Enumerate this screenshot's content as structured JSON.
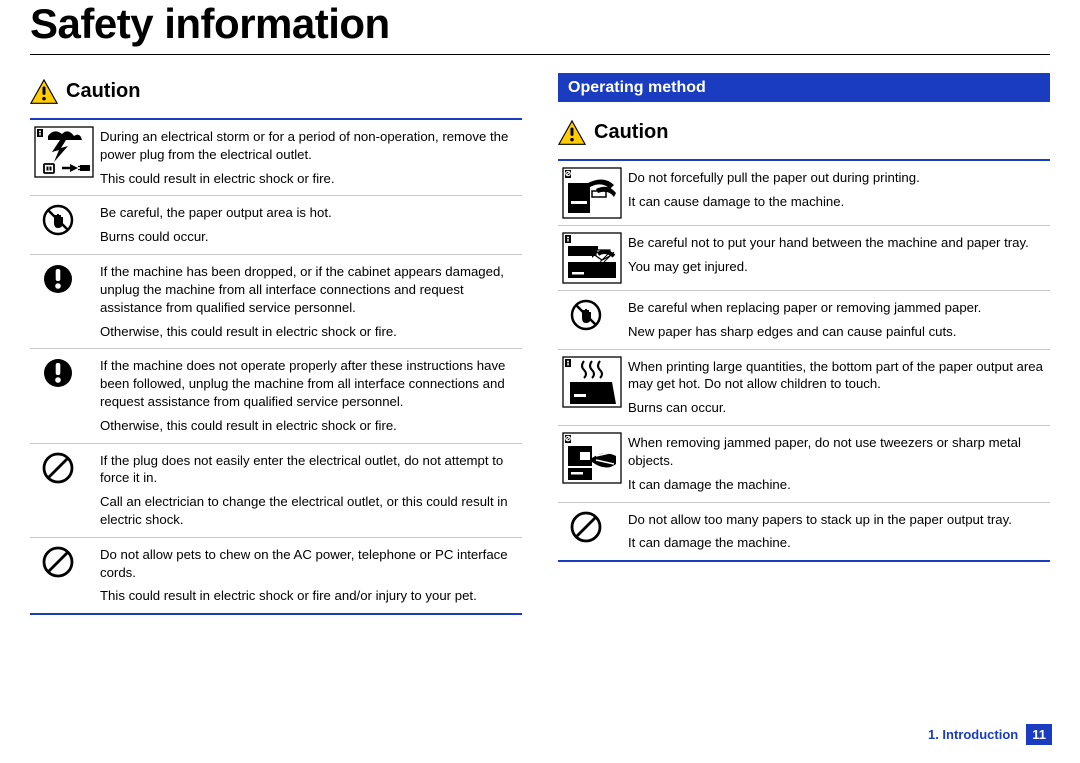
{
  "colors": {
    "accent": "#1a3cc1",
    "warn_fill": "#ffcc00",
    "text": "#000000",
    "rule_light": "#c9c9c9",
    "background": "#ffffff"
  },
  "page_title": "Safety information",
  "left": {
    "caution_label": "Caution",
    "rows": [
      {
        "icon": "storm-unplug",
        "main": "During an electrical storm or for a period of non-operation, remove the power plug from the electrical outlet.",
        "sub": "This could result in electric shock or fire."
      },
      {
        "icon": "no-touch-circle",
        "main": "Be careful, the paper output area is hot.",
        "sub": "Burns could occur."
      },
      {
        "icon": "exclaim-circle",
        "main": "If the machine has been dropped, or if the cabinet appears damaged, unplug the machine from all interface connections and request assistance from qualified service personnel.",
        "sub": "Otherwise, this could result in electric shock or fire."
      },
      {
        "icon": "exclaim-circle",
        "main": "If the machine does not operate properly after these instructions have been followed, unplug the machine from all interface connections and request assistance from qualified service personnel.",
        "sub": "Otherwise, this could result in electric shock or fire."
      },
      {
        "icon": "prohibit-circle",
        "main": "If the plug does not easily enter the electrical outlet, do not attempt to force it in.",
        "sub": "Call an electrician to change the electrical outlet, or this could result in electric shock."
      },
      {
        "icon": "prohibit-circle",
        "main": "Do not allow pets to chew on the AC power, telephone or PC interface cords.",
        "sub": "This could result in electric shock or fire and/or injury to your pet."
      }
    ]
  },
  "right": {
    "section_title": "Operating method",
    "caution_label": "Caution",
    "rows": [
      {
        "icon": "pull-paper",
        "main": "Do not forcefully pull the paper out during printing.",
        "sub": "It can cause damage to the machine."
      },
      {
        "icon": "hand-tray",
        "main": "Be careful not to put your hand between the machine and paper tray.",
        "sub": "You may get injured."
      },
      {
        "icon": "no-touch-circle",
        "main": "Be careful when replacing paper or removing jammed paper.",
        "sub": "New paper has sharp edges and can cause painful cuts."
      },
      {
        "icon": "hot-output",
        "main": "When printing large quantities, the bottom part of the paper output area may get hot. Do not allow children to touch.",
        "sub": "Burns can occur."
      },
      {
        "icon": "no-tweezers",
        "main": "When removing jammed paper, do not use tweezers or sharp metal objects.",
        "sub": "It can damage the machine."
      },
      {
        "icon": "prohibit-circle",
        "main": "Do not allow too many papers to stack up in the paper output tray.",
        "sub": "It can damage the machine."
      }
    ]
  },
  "footer": {
    "chapter": "1. Introduction",
    "page_number": "11"
  }
}
